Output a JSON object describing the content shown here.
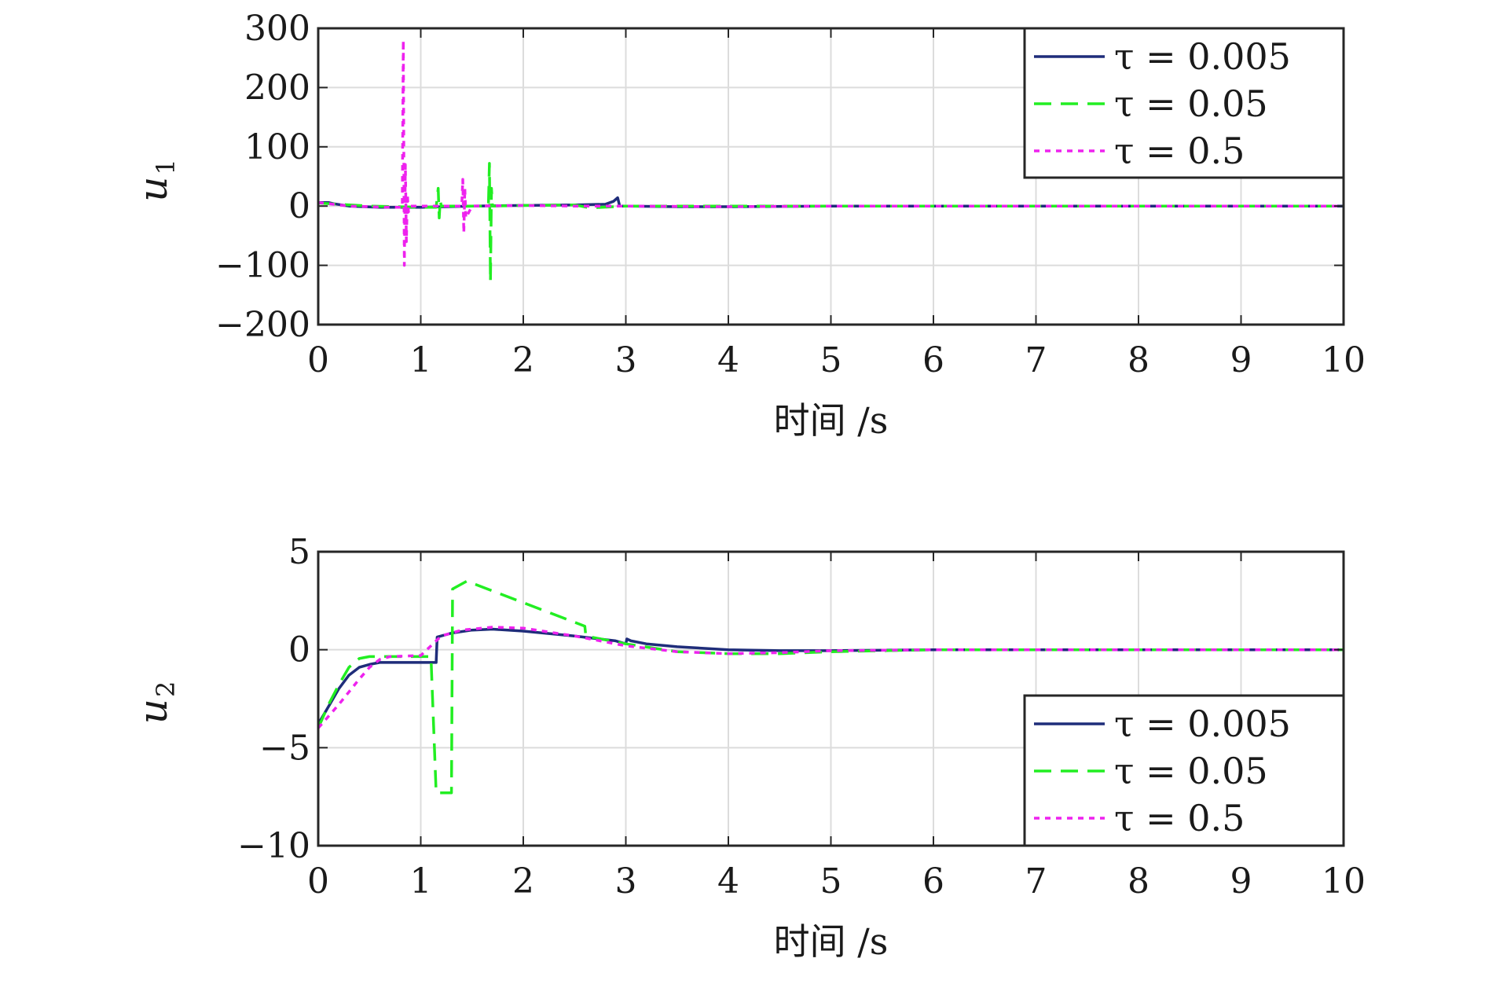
{
  "chart_data": [
    {
      "type": "line",
      "ylabel": "u",
      "ylabel_sub": "1",
      "xlabel": "时间 /s",
      "xlim": [
        0,
        10
      ],
      "ylim": [
        -200,
        300
      ],
      "xticks": [
        0,
        1,
        2,
        3,
        4,
        5,
        6,
        7,
        8,
        9,
        10
      ],
      "xtick_labels": [
        "0",
        "1",
        "2",
        "3",
        "4",
        "5",
        "6",
        "7",
        "8",
        "9",
        "10"
      ],
      "yticks": [
        300,
        200,
        100,
        0,
        -100,
        -200
      ],
      "ytick_labels": [
        "300",
        "200",
        "100",
        "0",
        "−100",
        "−200"
      ],
      "grid": true,
      "legend_position": "top-right",
      "series": [
        {
          "name": "τ = 0.005",
          "color": "#1f2d7a",
          "dash": "solid",
          "x": [
            0,
            0.1,
            0.15,
            0.3,
            0.6,
            1.0,
            1.5,
            2.0,
            2.5,
            2.8,
            2.88,
            2.92,
            2.94,
            3.0,
            3.5,
            4.0,
            5.0,
            7.0,
            10.0
          ],
          "y": [
            6,
            6,
            4,
            0,
            -2,
            -2,
            0,
            1,
            2,
            3,
            8,
            14,
            0,
            0,
            -1,
            -1,
            0,
            0,
            0
          ]
        },
        {
          "name": "τ = 0.05",
          "color": "#22ee22",
          "dash": "dashed",
          "x": [
            0,
            0.2,
            0.5,
            1.0,
            1.15,
            1.17,
            1.18,
            1.19,
            1.2,
            1.5,
            1.66,
            1.67,
            1.68,
            1.69,
            1.7,
            2.0,
            2.5,
            2.65,
            3.0,
            4.0,
            5.0,
            7.0,
            10.0
          ],
          "y": [
            5,
            3,
            0,
            -2,
            -2,
            30,
            -20,
            10,
            0,
            0,
            0,
            72,
            -128,
            30,
            0,
            1,
            2,
            -3,
            0,
            0,
            0,
            0,
            0
          ]
        },
        {
          "name": "τ = 0.5",
          "color": "#ee22ee",
          "dash": "dotted",
          "x": [
            0,
            0.3,
            0.7,
            0.82,
            0.83,
            0.84,
            0.85,
            0.86,
            0.87,
            0.88,
            0.9,
            1.2,
            1.4,
            1.41,
            1.42,
            1.43,
            1.44,
            1.5,
            2.0,
            2.5,
            3.0,
            4.0,
            5.0,
            7.0,
            10.0
          ],
          "y": [
            6,
            0,
            -2,
            -2,
            280,
            -100,
            70,
            -60,
            20,
            -10,
            0,
            0,
            0,
            45,
            -45,
            30,
            -20,
            0,
            1,
            0,
            0,
            -1,
            0,
            0,
            0
          ]
        }
      ]
    },
    {
      "type": "line",
      "ylabel": "u",
      "ylabel_sub": "2",
      "xlabel": "时间 /s",
      "xlim": [
        0,
        10
      ],
      "ylim": [
        -10,
        5
      ],
      "xticks": [
        0,
        1,
        2,
        3,
        4,
        5,
        6,
        7,
        8,
        9,
        10
      ],
      "xtick_labels": [
        "0",
        "1",
        "2",
        "3",
        "4",
        "5",
        "6",
        "7",
        "8",
        "9",
        "10"
      ],
      "yticks": [
        5,
        0,
        -5,
        -10
      ],
      "ytick_labels": [
        "5",
        "0",
        "−5",
        "−10"
      ],
      "grid": true,
      "legend_position": "bottom-right",
      "series": [
        {
          "name": "τ = 0.005",
          "color": "#1f2d7a",
          "dash": "solid",
          "x": [
            0,
            0.1,
            0.2,
            0.3,
            0.4,
            0.5,
            0.6,
            1.0,
            1.15,
            1.16,
            1.3,
            1.5,
            1.7,
            2.0,
            2.5,
            2.9,
            3.0,
            3.01,
            3.05,
            3.2,
            3.5,
            4.0,
            4.5,
            5.0,
            6.0,
            10.0
          ],
          "y": [
            -3.8,
            -2.9,
            -2.0,
            -1.3,
            -0.9,
            -0.75,
            -0.65,
            -0.65,
            -0.65,
            0.65,
            0.85,
            1.0,
            1.05,
            0.95,
            0.7,
            0.45,
            0.3,
            0.55,
            0.45,
            0.3,
            0.15,
            0.0,
            -0.05,
            -0.05,
            0.0,
            0.0
          ]
        },
        {
          "name": "τ = 0.05",
          "color": "#22ee22",
          "dash": "dashed",
          "x": [
            0,
            0.1,
            0.2,
            0.3,
            0.4,
            0.5,
            1.0,
            1.1,
            1.15,
            1.3,
            1.31,
            1.45,
            2.0,
            2.6,
            2.61,
            3.0,
            3.5,
            4.0,
            4.5,
            5.0,
            6.0,
            10.0
          ],
          "y": [
            -4.0,
            -2.8,
            -1.8,
            -0.9,
            -0.45,
            -0.35,
            -0.35,
            -0.35,
            -7.3,
            -7.3,
            3.1,
            3.5,
            2.4,
            1.2,
            0.7,
            0.3,
            -0.1,
            -0.2,
            -0.2,
            -0.1,
            0.0,
            0.0
          ]
        },
        {
          "name": "τ = 0.5",
          "color": "#ee22ee",
          "dash": "dotted",
          "x": [
            0,
            0.2,
            0.4,
            0.5,
            0.6,
            0.7,
            1.0,
            1.2,
            1.4,
            1.7,
            2.0,
            2.5,
            3.0,
            3.5,
            4.0,
            4.5,
            5.0,
            6.0,
            10.0
          ],
          "y": [
            -4.0,
            -2.8,
            -1.5,
            -0.9,
            -0.5,
            -0.35,
            -0.3,
            0.7,
            1.0,
            1.15,
            1.1,
            0.7,
            0.2,
            -0.1,
            -0.2,
            -0.15,
            -0.05,
            0.0,
            0.0
          ]
        }
      ]
    }
  ]
}
